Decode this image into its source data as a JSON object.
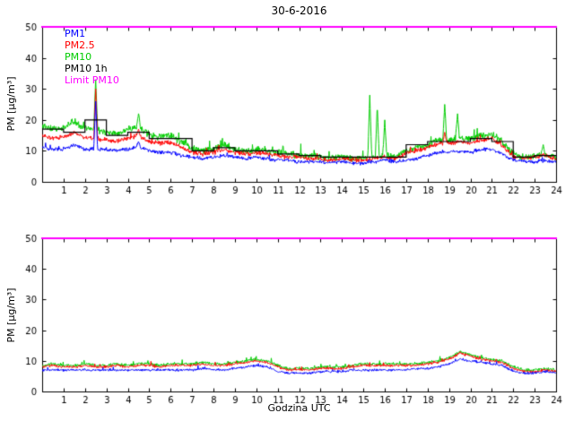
{
  "chart_data": [
    {
      "type": "line",
      "title": "30-6-2016",
      "xlabel": "",
      "ylabel": "PM [µg/m³]",
      "xlim": [
        0,
        24
      ],
      "ylim": [
        0,
        50
      ],
      "xticks": [
        1,
        2,
        3,
        4,
        5,
        6,
        7,
        8,
        9,
        10,
        11,
        12,
        13,
        14,
        15,
        16,
        17,
        18,
        19,
        20,
        21,
        22,
        23,
        24
      ],
      "yticks": [
        0,
        10,
        20,
        30,
        40,
        50
      ],
      "grid": false,
      "legend_position": "top-left",
      "legend": [
        {
          "label": "PM1",
          "color": "#0000ff"
        },
        {
          "label": "PM2.5",
          "color": "#ff0000"
        },
        {
          "label": "PM10",
          "color": "#00cc00"
        },
        {
          "label": "PM10 1h",
          "color": "#000000"
        },
        {
          "label": "Limit PM10",
          "color": "#ff00ff"
        }
      ],
      "x_step": 0.5,
      "seed": 1,
      "series": [
        {
          "name": "PM10",
          "color": "#00cc00",
          "noise": 1.3,
          "values": [
            18,
            17,
            17.5,
            19.5,
            17,
            17,
            16,
            15.5,
            17,
            18,
            15,
            14.5,
            15,
            13,
            10.5,
            10,
            10.5,
            12,
            10.5,
            10,
            10.5,
            10,
            9.5,
            9,
            8.5,
            8.5,
            8,
            7.5,
            8,
            7.5,
            7.5,
            8,
            9,
            8,
            10,
            11,
            12,
            13.5,
            13.5,
            14,
            14,
            15,
            15.5,
            13,
            9,
            8,
            8.5,
            9,
            8
          ],
          "spikes": [
            {
              "x": 2.5,
              "y": 33
            },
            {
              "x": 4.5,
              "y": 22
            },
            {
              "x": 15.3,
              "y": 28
            },
            {
              "x": 15.65,
              "y": 25
            },
            {
              "x": 16.0,
              "y": 20
            },
            {
              "x": 18.8,
              "y": 25
            },
            {
              "x": 19.4,
              "y": 22
            },
            {
              "x": 23.4,
              "y": 12
            }
          ]
        },
        {
          "name": "PM2.5",
          "color": "#ff0000",
          "noise": 0.9,
          "values": [
            15,
            14,
            14.5,
            16,
            14,
            14,
            13.5,
            13,
            14,
            15,
            13,
            12.5,
            12.5,
            11,
            9.5,
            9,
            9.5,
            10.5,
            9.5,
            9,
            9.5,
            9,
            8.5,
            8,
            8,
            7.5,
            7.5,
            7,
            7.5,
            7,
            7,
            7.5,
            8,
            7.5,
            9,
            10,
            11,
            12.5,
            12.5,
            13,
            12.5,
            13.5,
            14,
            11.5,
            8,
            7.5,
            8,
            8.5,
            7.5
          ],
          "spikes": [
            {
              "x": 2.5,
              "y": 30
            },
            {
              "x": 4.5,
              "y": 17
            },
            {
              "x": 18.8,
              "y": 16
            }
          ]
        },
        {
          "name": "PM1",
          "color": "#0000ff",
          "noise": 0.7,
          "values": [
            11,
            10.5,
            10.5,
            12,
            10.5,
            10.5,
            10.5,
            10,
            10.5,
            11.5,
            10,
            9.5,
            9.5,
            8.5,
            8,
            7.5,
            8,
            8.5,
            8,
            7.5,
            8,
            7.5,
            7,
            7,
            6.5,
            6.5,
            6.5,
            6,
            6.5,
            6,
            6,
            6.5,
            7,
            6.5,
            7,
            7.5,
            8.5,
            9.5,
            9.5,
            10,
            9.5,
            10.5,
            10.5,
            9,
            7,
            6.5,
            6.5,
            7,
            6.5
          ],
          "spikes": [
            {
              "x": 2.5,
              "y": 26
            },
            {
              "x": 4.5,
              "y": 13
            }
          ]
        },
        {
          "name": "PM10 1h",
          "color": "#000000",
          "step": true,
          "values": [
            17,
            16,
            20,
            15,
            16,
            14,
            14,
            10,
            11,
            10,
            10,
            9,
            8.5,
            8,
            8,
            8,
            8,
            12,
            13,
            13,
            14,
            13,
            8,
            8.5
          ]
        },
        {
          "name": "Limit PM10",
          "color": "#ff00ff",
          "constant": 50,
          "lineWidth": 2
        }
      ]
    },
    {
      "type": "line",
      "title": "",
      "xlabel": "Godzina UTC",
      "ylabel": "PM [µg/m³]",
      "xlim": [
        0,
        24
      ],
      "ylim": [
        0,
        50
      ],
      "xticks": [
        1,
        2,
        3,
        4,
        5,
        6,
        7,
        8,
        9,
        10,
        11,
        12,
        13,
        14,
        15,
        16,
        17,
        18,
        19,
        20,
        21,
        22,
        23,
        24
      ],
      "yticks": [
        0,
        10,
        20,
        30,
        40,
        50
      ],
      "grid": false,
      "x_step": 0.5,
      "seed": 2,
      "series": [
        {
          "name": "PM10",
          "color": "#00cc00",
          "noise": 0.6,
          "values": [
            8.5,
            9,
            8.5,
            8.5,
            9,
            8.5,
            8.5,
            9,
            8.5,
            9,
            9,
            8.5,
            9,
            9,
            9,
            9.5,
            9,
            9,
            9.5,
            10,
            10.5,
            10,
            8.5,
            7.5,
            7.5,
            7.5,
            8,
            8,
            8,
            8.5,
            9,
            9,
            9,
            9,
            9,
            9,
            9.5,
            10,
            11,
            13,
            12,
            11,
            10.5,
            10,
            8,
            7,
            7,
            7.5,
            7
          ]
        },
        {
          "name": "PM2.5",
          "color": "#ff0000",
          "noise": 0.5,
          "values": [
            8,
            8.5,
            8,
            8,
            8.5,
            8,
            8,
            8.5,
            8,
            8.5,
            8.5,
            8,
            8.5,
            8.5,
            8.5,
            9,
            8.5,
            8.5,
            9,
            9.5,
            10,
            9.5,
            8,
            7,
            7,
            7,
            7.5,
            7.5,
            7.5,
            8,
            8.5,
            8.5,
            8.5,
            8.5,
            8.5,
            8.5,
            9,
            9.5,
            10.5,
            12.5,
            11.5,
            10.5,
            10,
            9.5,
            7.5,
            6.5,
            6.5,
            7,
            6.5
          ]
        },
        {
          "name": "PM1",
          "color": "#0000ff",
          "noise": 0.45,
          "values": [
            7,
            7,
            7,
            7,
            7,
            7,
            7,
            7,
            7,
            7,
            7,
            7,
            7,
            7,
            7,
            7.5,
            7,
            7,
            7.5,
            8,
            8.5,
            8,
            6.5,
            6,
            6,
            6,
            6.5,
            6.5,
            6.5,
            7,
            7,
            7,
            7,
            7,
            7,
            7.5,
            7.5,
            8,
            9,
            10.5,
            10,
            9.5,
            9,
            8.5,
            6.5,
            6,
            6,
            6.5,
            6
          ]
        },
        {
          "name": "Limit PM10",
          "color": "#ff00ff",
          "constant": 50,
          "lineWidth": 2
        }
      ]
    }
  ]
}
